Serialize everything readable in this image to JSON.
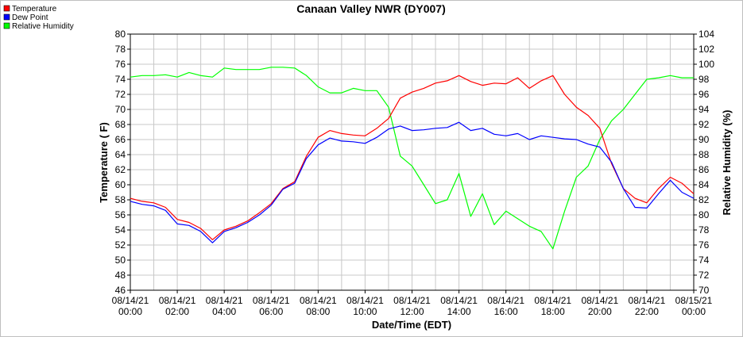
{
  "chart_data": {
    "type": "line",
    "title": "Canaan Valley NWR (DY007)",
    "xlabel": "Date/Time (EDT)",
    "ylabel": "Temperature ( F)",
    "y2label": "Relative Humidity (%)",
    "ylim": [
      46,
      80
    ],
    "y2lim": [
      70,
      104
    ],
    "xlim": [
      0,
      24
    ],
    "grid": true,
    "legend_position": "top-left",
    "x_ticks": [
      {
        "h": 0,
        "date": "08/14/21",
        "time": "00:00"
      },
      {
        "h": 2,
        "date": "08/14/21",
        "time": "02:00"
      },
      {
        "h": 4,
        "date": "08/14/21",
        "time": "04:00"
      },
      {
        "h": 6,
        "date": "08/14/21",
        "time": "06:00"
      },
      {
        "h": 8,
        "date": "08/14/21",
        "time": "08:00"
      },
      {
        "h": 10,
        "date": "08/14/21",
        "time": "10:00"
      },
      {
        "h": 12,
        "date": "08/14/21",
        "time": "12:00"
      },
      {
        "h": 14,
        "date": "08/14/21",
        "time": "14:00"
      },
      {
        "h": 16,
        "date": "08/14/21",
        "time": "16:00"
      },
      {
        "h": 18,
        "date": "08/14/21",
        "time": "18:00"
      },
      {
        "h": 20,
        "date": "08/14/21",
        "time": "20:00"
      },
      {
        "h": 22,
        "date": "08/14/21",
        "time": "22:00"
      },
      {
        "h": 24,
        "date": "08/15/21",
        "time": "00:00"
      }
    ],
    "y_ticks": [
      46,
      48,
      50,
      52,
      54,
      56,
      58,
      60,
      62,
      64,
      66,
      68,
      70,
      72,
      74,
      76,
      78,
      80
    ],
    "y2_ticks": [
      70,
      72,
      74,
      76,
      78,
      80,
      82,
      84,
      86,
      88,
      90,
      92,
      94,
      96,
      98,
      100,
      102,
      104
    ],
    "series": [
      {
        "name": "Temperature",
        "color": "#ff0000",
        "axis": "left",
        "points": [
          [
            0,
            58.2
          ],
          [
            0.5,
            57.8
          ],
          [
            1,
            57.6
          ],
          [
            1.5,
            57.0
          ],
          [
            2,
            55.4
          ],
          [
            2.5,
            55.0
          ],
          [
            3,
            54.2
          ],
          [
            3.5,
            52.7
          ],
          [
            4,
            54.0
          ],
          [
            4.5,
            54.5
          ],
          [
            5,
            55.2
          ],
          [
            5.5,
            56.3
          ],
          [
            6,
            57.5
          ],
          [
            6.5,
            59.5
          ],
          [
            7,
            60.4
          ],
          [
            7.5,
            63.8
          ],
          [
            8,
            66.3
          ],
          [
            8.5,
            67.2
          ],
          [
            9,
            66.8
          ],
          [
            9.5,
            66.6
          ],
          [
            10,
            66.5
          ],
          [
            10.5,
            67.5
          ],
          [
            11,
            68.8
          ],
          [
            11.5,
            71.5
          ],
          [
            12,
            72.3
          ],
          [
            12.5,
            72.8
          ],
          [
            13,
            73.5
          ],
          [
            13.5,
            73.8
          ],
          [
            14,
            74.5
          ],
          [
            14.5,
            73.7
          ],
          [
            15,
            73.2
          ],
          [
            15.5,
            73.5
          ],
          [
            16,
            73.4
          ],
          [
            16.5,
            74.2
          ],
          [
            17,
            72.8
          ],
          [
            17.5,
            73.8
          ],
          [
            18,
            74.5
          ],
          [
            18.5,
            72.0
          ],
          [
            19,
            70.3
          ],
          [
            19.5,
            69.2
          ],
          [
            20,
            67.5
          ],
          [
            20.5,
            62.8
          ],
          [
            21,
            59.5
          ],
          [
            21.5,
            58.2
          ],
          [
            22,
            57.6
          ],
          [
            22.5,
            59.5
          ],
          [
            23,
            61.0
          ],
          [
            23.5,
            60.2
          ],
          [
            24,
            58.8
          ]
        ]
      },
      {
        "name": "Dew Point",
        "color": "#0000ff",
        "axis": "left",
        "points": [
          [
            0,
            57.8
          ],
          [
            0.5,
            57.4
          ],
          [
            1,
            57.2
          ],
          [
            1.5,
            56.6
          ],
          [
            2,
            54.8
          ],
          [
            2.5,
            54.6
          ],
          [
            3,
            53.8
          ],
          [
            3.5,
            52.3
          ],
          [
            4,
            53.8
          ],
          [
            4.5,
            54.3
          ],
          [
            5,
            55.0
          ],
          [
            5.5,
            56.0
          ],
          [
            6,
            57.3
          ],
          [
            6.5,
            59.4
          ],
          [
            7,
            60.2
          ],
          [
            7.5,
            63.5
          ],
          [
            8,
            65.3
          ],
          [
            8.5,
            66.2
          ],
          [
            9,
            65.8
          ],
          [
            9.5,
            65.7
          ],
          [
            10,
            65.5
          ],
          [
            10.5,
            66.3
          ],
          [
            11,
            67.4
          ],
          [
            11.5,
            67.8
          ],
          [
            12,
            67.2
          ],
          [
            12.5,
            67.3
          ],
          [
            13,
            67.5
          ],
          [
            13.5,
            67.6
          ],
          [
            14,
            68.3
          ],
          [
            14.5,
            67.2
          ],
          [
            15,
            67.5
          ],
          [
            15.5,
            66.7
          ],
          [
            16,
            66.5
          ],
          [
            16.5,
            66.8
          ],
          [
            17,
            66.0
          ],
          [
            17.5,
            66.5
          ],
          [
            18,
            66.3
          ],
          [
            18.5,
            66.1
          ],
          [
            19,
            66.0
          ],
          [
            19.5,
            65.4
          ],
          [
            20,
            65.0
          ],
          [
            20.5,
            63.0
          ],
          [
            21,
            59.5
          ],
          [
            21.5,
            57.0
          ],
          [
            22,
            56.9
          ],
          [
            22.5,
            58.8
          ],
          [
            23,
            60.6
          ],
          [
            23.5,
            59.0
          ],
          [
            24,
            58.2
          ]
        ]
      },
      {
        "name": "Relative Humidity",
        "color": "#00ff00",
        "axis": "right",
        "points": [
          [
            0,
            98.3
          ],
          [
            0.5,
            98.5
          ],
          [
            1,
            98.5
          ],
          [
            1.5,
            98.6
          ],
          [
            2,
            98.3
          ],
          [
            2.5,
            98.9
          ],
          [
            3,
            98.5
          ],
          [
            3.5,
            98.3
          ],
          [
            4,
            99.5
          ],
          [
            4.5,
            99.3
          ],
          [
            5,
            99.3
          ],
          [
            5.5,
            99.3
          ],
          [
            6,
            99.6
          ],
          [
            6.5,
            99.6
          ],
          [
            7,
            99.5
          ],
          [
            7.5,
            98.5
          ],
          [
            8,
            97.0
          ],
          [
            8.5,
            96.2
          ],
          [
            9,
            96.2
          ],
          [
            9.5,
            96.8
          ],
          [
            10,
            96.5
          ],
          [
            10.5,
            96.5
          ],
          [
            11,
            94.3
          ],
          [
            11.5,
            87.8
          ],
          [
            12,
            86.5
          ],
          [
            12.5,
            84.0
          ],
          [
            13,
            81.5
          ],
          [
            13.5,
            82.0
          ],
          [
            14,
            85.5
          ],
          [
            14.5,
            79.8
          ],
          [
            15,
            82.8
          ],
          [
            15.5,
            78.7
          ],
          [
            16,
            80.5
          ],
          [
            16.5,
            79.5
          ],
          [
            17,
            78.5
          ],
          [
            17.5,
            77.8
          ],
          [
            18,
            75.5
          ],
          [
            18.5,
            80.5
          ],
          [
            19,
            85.0
          ],
          [
            19.5,
            86.5
          ],
          [
            20,
            90.0
          ],
          [
            20.5,
            92.5
          ],
          [
            21,
            94.0
          ],
          [
            21.5,
            96.0
          ],
          [
            22,
            98.0
          ],
          [
            22.5,
            98.2
          ],
          [
            23,
            98.5
          ],
          [
            23.5,
            98.2
          ],
          [
            24,
            98.2
          ]
        ]
      }
    ]
  }
}
